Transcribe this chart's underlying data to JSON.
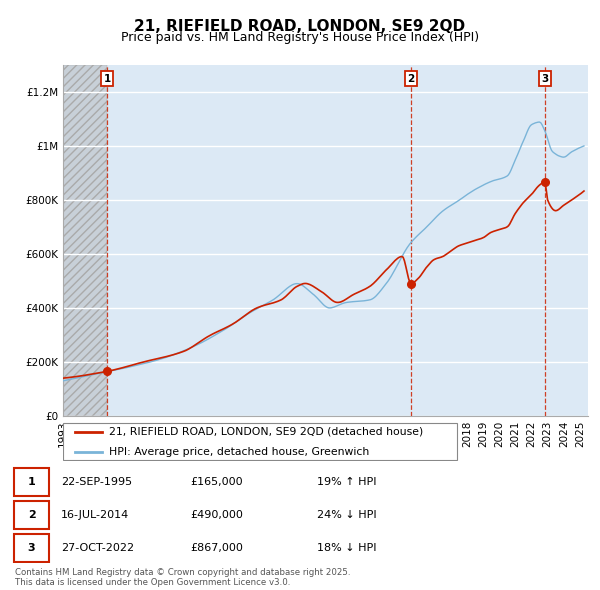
{
  "title": "21, RIEFIELD ROAD, LONDON, SE9 2QD",
  "subtitle": "Price paid vs. HM Land Registry's House Price Index (HPI)",
  "xlim_start": 1993.0,
  "xlim_end": 2025.5,
  "ylim": [
    0,
    1300000
  ],
  "yticks": [
    0,
    200000,
    400000,
    600000,
    800000,
    1000000,
    1200000
  ],
  "ytick_labels": [
    "£0",
    "£200K",
    "£400K",
    "£600K",
    "£800K",
    "£1M",
    "£1.2M"
  ],
  "sale_dates": [
    1995.73,
    2014.54,
    2022.83
  ],
  "sale_prices": [
    165000,
    490000,
    867000
  ],
  "sale_labels": [
    "1",
    "2",
    "3"
  ],
  "hpi_line_color": "#7ab4d8",
  "sale_line_color": "#cc2200",
  "sale_dot_color": "#cc2200",
  "dashed_line_color": "#cc2200",
  "background_color": "#dce9f5",
  "grid_color": "#ffffff",
  "hatch_facecolor": "#c8d0d8",
  "legend_label_red": "21, RIEFIELD ROAD, LONDON, SE9 2QD (detached house)",
  "legend_label_blue": "HPI: Average price, detached house, Greenwich",
  "table_rows": [
    [
      "1",
      "22-SEP-1995",
      "£165,000",
      "19% ↑ HPI"
    ],
    [
      "2",
      "16-JUL-2014",
      "£490,000",
      "24% ↓ HPI"
    ],
    [
      "3",
      "27-OCT-2022",
      "£867,000",
      "18% ↓ HPI"
    ]
  ],
  "footnote": "Contains HM Land Registry data © Crown copyright and database right 2025.\nThis data is licensed under the Open Government Licence v3.0.",
  "title_fontsize": 11,
  "subtitle_fontsize": 9,
  "tick_fontsize": 7.5
}
